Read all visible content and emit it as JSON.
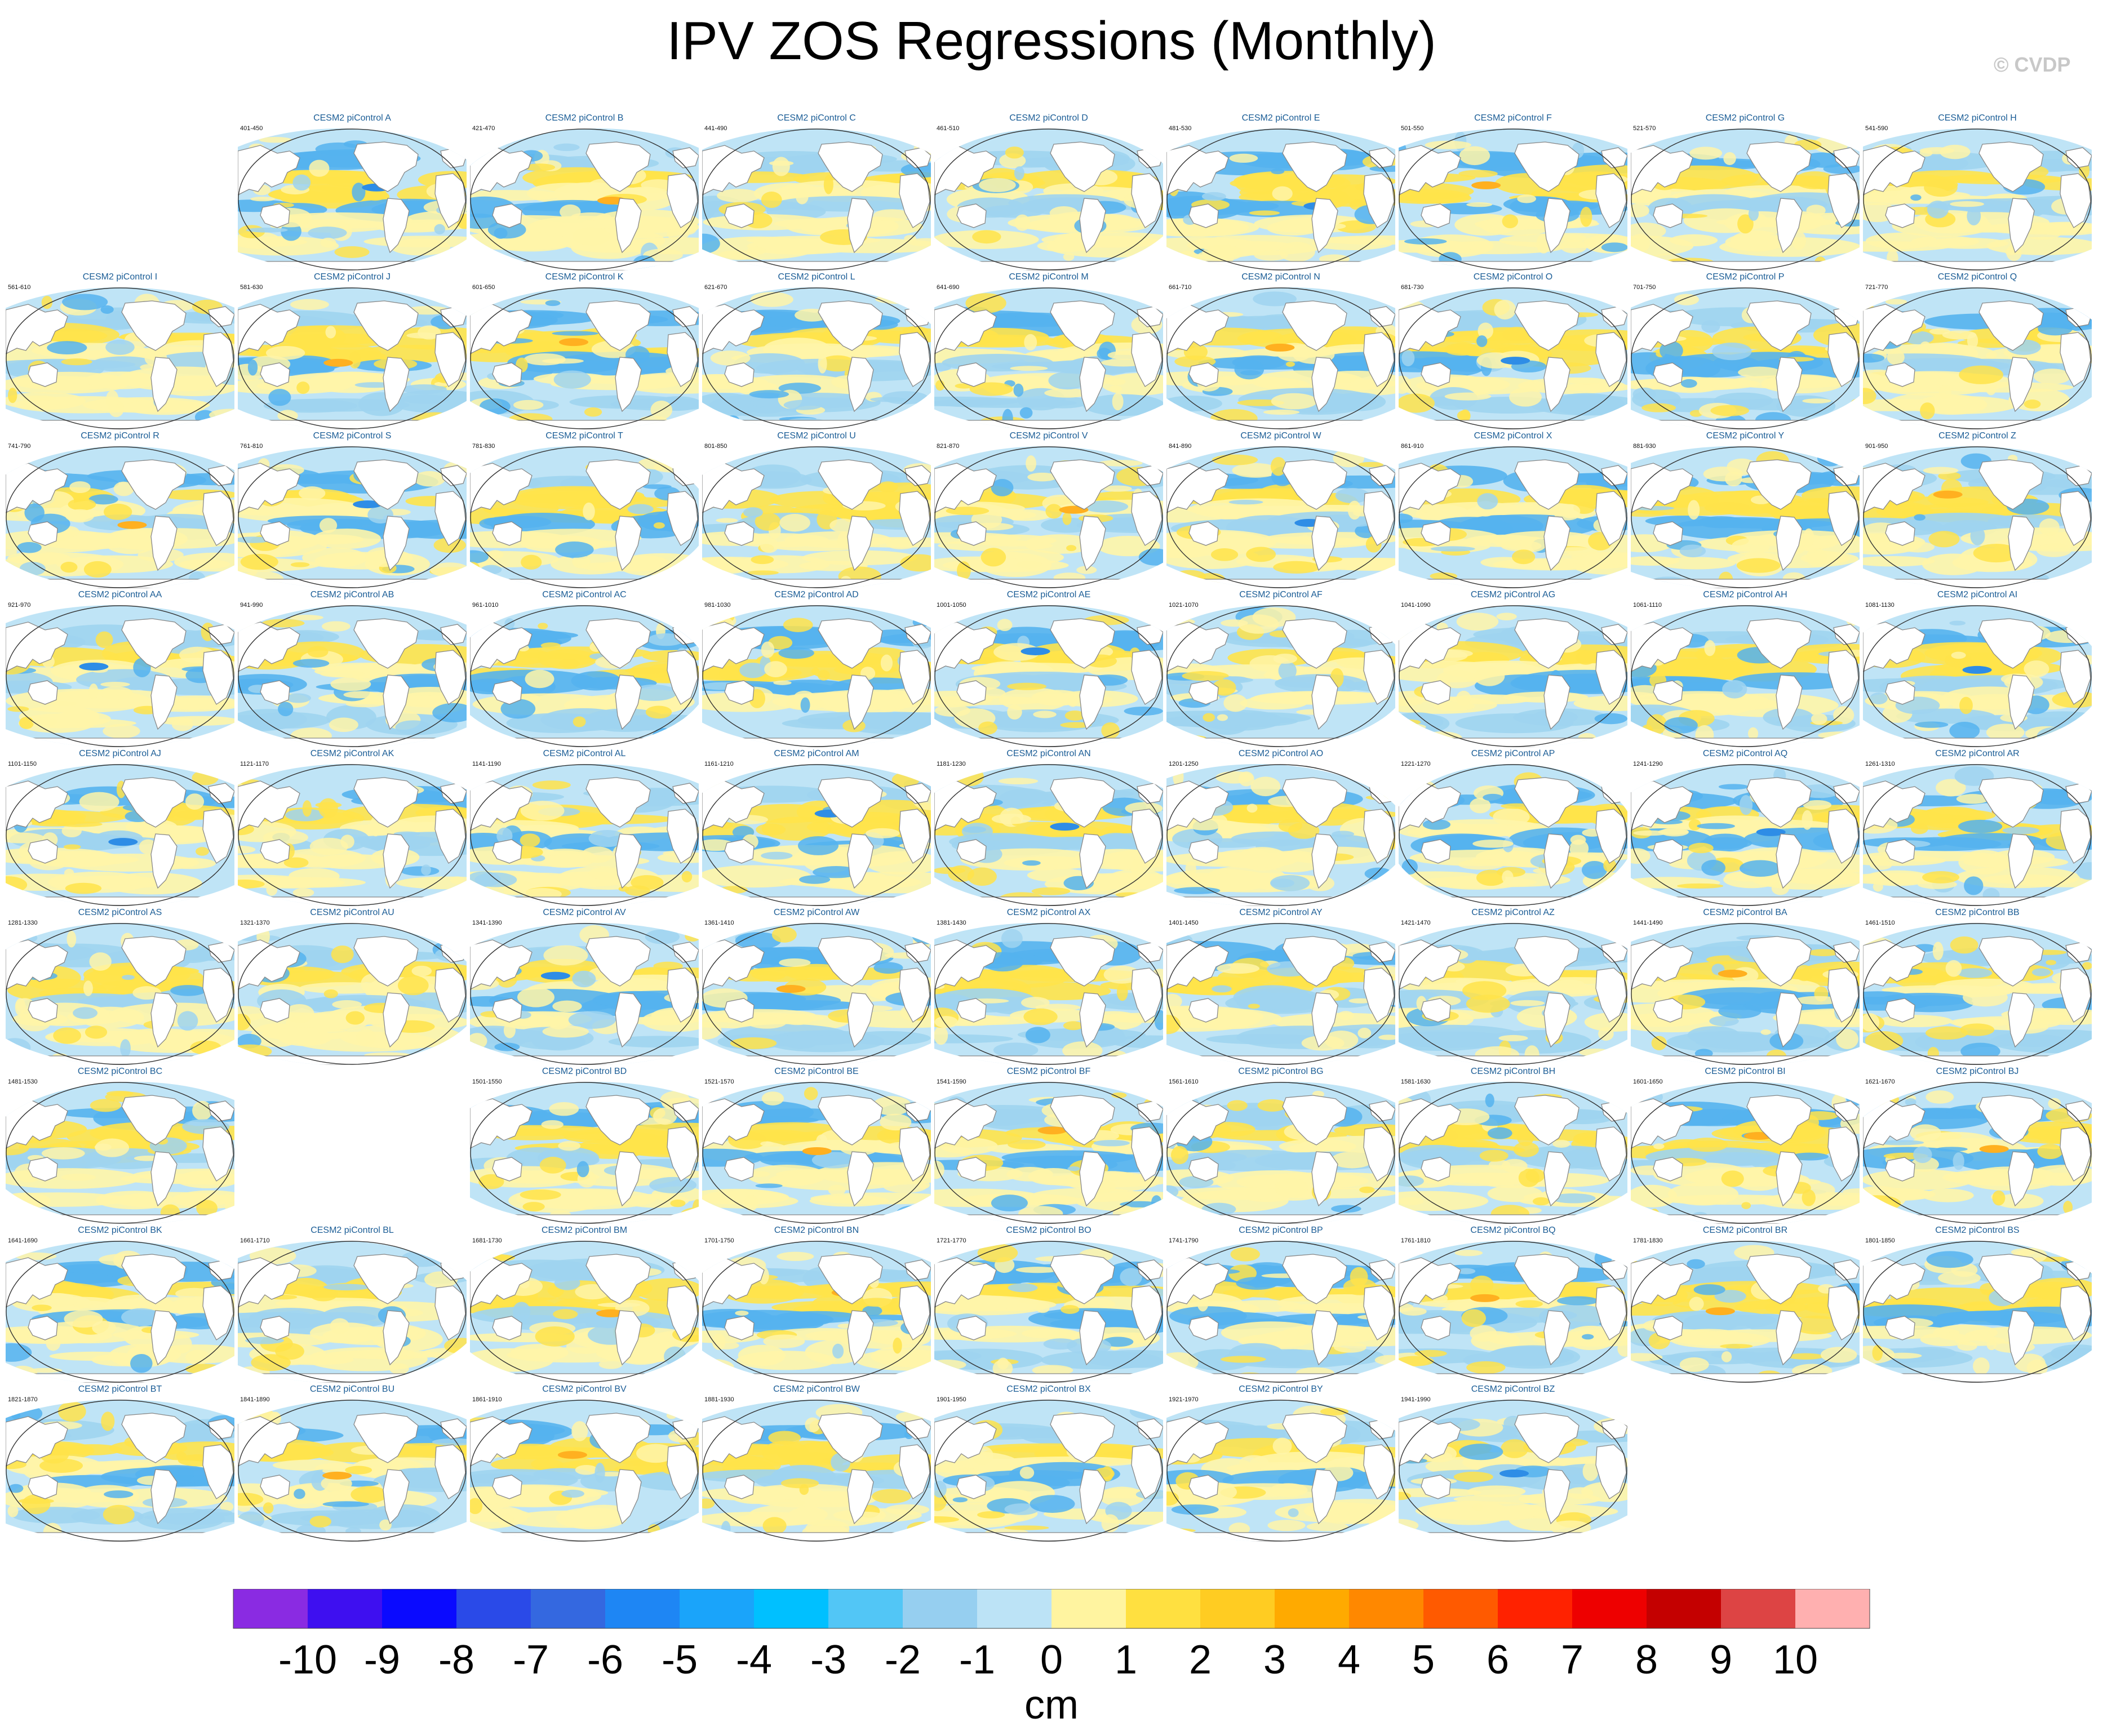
{
  "title": "IPV ZOS Regressions (Monthly)",
  "credit": "© CVDP",
  "colorbar": {
    "unit": "cm",
    "tick_labels": [
      "-10",
      "-9",
      "-8",
      "-7",
      "-6",
      "-5",
      "-4",
      "-3",
      "-2",
      "-1",
      "0",
      "1",
      "2",
      "3",
      "4",
      "5",
      "6",
      "7",
      "8",
      "9",
      "10"
    ],
    "colors": [
      "#8a2be2",
      "#3e0ff0",
      "#0a0aff",
      "#2a4ae8",
      "#3468e0",
      "#1e86f4",
      "#1aa4fa",
      "#00c0ff",
      "#52c6f6",
      "#96cff0",
      "#bce3f6",
      "#fff4a0",
      "#ffe040",
      "#ffcc22",
      "#ffaa00",
      "#ff8800",
      "#ff5a00",
      "#ff2200",
      "#ee0000",
      "#c40000",
      "#dd4444",
      "#ffb0b0"
    ]
  },
  "map_colors": {
    "ocean_neutral": "#bfe4f6",
    "light_blue": "#9fd4f0",
    "mid_blue": "#55b3ee",
    "strong_blue": "#2e8de6",
    "light_yellow": "#fff5a8",
    "yellow": "#ffe34a",
    "orange": "#ffb020",
    "land": "#ffffff",
    "coast": "#888888"
  },
  "panels": [
    {
      "title": "CESM2 piControl A",
      "years": "401-450"
    },
    {
      "title": "CESM2 piControl B",
      "years": "421-470"
    },
    {
      "title": "CESM2 piControl C",
      "years": "441-490"
    },
    {
      "title": "CESM2 piControl D",
      "years": "461-510"
    },
    {
      "title": "CESM2 piControl E",
      "years": "481-530"
    },
    {
      "title": "CESM2 piControl F",
      "years": "501-550"
    },
    {
      "title": "CESM2 piControl G",
      "years": "521-570"
    },
    {
      "title": "CESM2 piControl H",
      "years": "541-590"
    },
    {
      "title": "CESM2 piControl I",
      "years": "561-610"
    },
    {
      "title": "CESM2 piControl J",
      "years": "581-630"
    },
    {
      "title": "CESM2 piControl K",
      "years": "601-650"
    },
    {
      "title": "CESM2 piControl L",
      "years": "621-670"
    },
    {
      "title": "CESM2 piControl M",
      "years": "641-690"
    },
    {
      "title": "CESM2 piControl N",
      "years": "661-710"
    },
    {
      "title": "CESM2 piControl O",
      "years": "681-730"
    },
    {
      "title": "CESM2 piControl P",
      "years": "701-750"
    },
    {
      "title": "CESM2 piControl Q",
      "years": "721-770"
    },
    {
      "title": "CESM2 piControl R",
      "years": "741-790"
    },
    {
      "title": "CESM2 piControl S",
      "years": "761-810"
    },
    {
      "title": "CESM2 piControl T",
      "years": "781-830"
    },
    {
      "title": "CESM2 piControl U",
      "years": "801-850"
    },
    {
      "title": "CESM2 piControl V",
      "years": "821-870"
    },
    {
      "title": "CESM2 piControl W",
      "years": "841-890"
    },
    {
      "title": "CESM2 piControl X",
      "years": "861-910"
    },
    {
      "title": "CESM2 piControl Y",
      "years": "881-930"
    },
    {
      "title": "CESM2 piControl Z",
      "years": "901-950"
    },
    {
      "title": "CESM2 piControl AA",
      "years": "921-970"
    },
    {
      "title": "CESM2 piControl AB",
      "years": "941-990"
    },
    {
      "title": "CESM2 piControl AC",
      "years": "961-1010"
    },
    {
      "title": "CESM2 piControl AD",
      "years": "981-1030"
    },
    {
      "title": "CESM2 piControl AE",
      "years": "1001-1050"
    },
    {
      "title": "CESM2 piControl AF",
      "years": "1021-1070"
    },
    {
      "title": "CESM2 piControl AG",
      "years": "1041-1090"
    },
    {
      "title": "CESM2 piControl AH",
      "years": "1061-1110"
    },
    {
      "title": "CESM2 piControl AI",
      "years": "1081-1130"
    },
    {
      "title": "CESM2 piControl AJ",
      "years": "1101-1150"
    },
    {
      "title": "CESM2 piControl AK",
      "years": "1121-1170"
    },
    {
      "title": "CESM2 piControl AL",
      "years": "1141-1190"
    },
    {
      "title": "CESM2 piControl AM",
      "years": "1161-1210"
    },
    {
      "title": "CESM2 piControl AN",
      "years": "1181-1230"
    },
    {
      "title": "CESM2 piControl AO",
      "years": "1201-1250"
    },
    {
      "title": "CESM2 piControl AP",
      "years": "1221-1270"
    },
    {
      "title": "CESM2 piControl AQ",
      "years": "1241-1290"
    },
    {
      "title": "CESM2 piControl AR",
      "years": "1261-1310"
    },
    {
      "title": "CESM2 piControl AS",
      "years": "1281-1330"
    },
    {
      "title": "CESM2 piControl AU",
      "years": "1321-1370"
    },
    {
      "title": "CESM2 piControl AV",
      "years": "1341-1390"
    },
    {
      "title": "CESM2 piControl AW",
      "years": "1361-1410"
    },
    {
      "title": "CESM2 piControl AX",
      "years": "1381-1430"
    },
    {
      "title": "CESM2 piControl AY",
      "years": "1401-1450"
    },
    {
      "title": "CESM2 piControl AZ",
      "years": "1421-1470"
    },
    {
      "title": "CESM2 piControl BA",
      "years": "1441-1490"
    },
    {
      "title": "CESM2 piControl BB",
      "years": "1461-1510"
    },
    {
      "title": "CESM2 piControl BC",
      "years": "1481-1530"
    },
    {
      "title": "CESM2 piControl BD",
      "years": "1501-1550"
    },
    {
      "title": "CESM2 piControl BE",
      "years": "1521-1570"
    },
    {
      "title": "CESM2 piControl BF",
      "years": "1541-1590"
    },
    {
      "title": "CESM2 piControl BG",
      "years": "1561-1610"
    },
    {
      "title": "CESM2 piControl BH",
      "years": "1581-1630"
    },
    {
      "title": "CESM2 piControl BI",
      "years": "1601-1650"
    },
    {
      "title": "CESM2 piControl BJ",
      "years": "1621-1670"
    },
    {
      "title": "CESM2 piControl BK",
      "years": "1641-1690"
    },
    {
      "title": "CESM2 piControl BL",
      "years": "1661-1710"
    },
    {
      "title": "CESM2 piControl BM",
      "years": "1681-1730"
    },
    {
      "title": "CESM2 piControl BN",
      "years": "1701-1750"
    },
    {
      "title": "CESM2 piControl BO",
      "years": "1721-1770"
    },
    {
      "title": "CESM2 piControl BP",
      "years": "1741-1790"
    },
    {
      "title": "CESM2 piControl BQ",
      "years": "1761-1810"
    },
    {
      "title": "CESM2 piControl BR",
      "years": "1781-1830"
    },
    {
      "title": "CESM2 piControl BS",
      "years": "1801-1850"
    },
    {
      "title": "CESM2 piControl BT",
      "years": "1821-1870"
    },
    {
      "title": "CESM2 piControl BU",
      "years": "1841-1890"
    },
    {
      "title": "CESM2 piControl BV",
      "years": "1861-1910"
    },
    {
      "title": "CESM2 piControl BW",
      "years": "1881-1930"
    },
    {
      "title": "CESM2 piControl BX",
      "years": "1901-1950"
    },
    {
      "title": "CESM2 piControl BY",
      "years": "1921-1970"
    },
    {
      "title": "CESM2 piControl BZ",
      "years": "1941-1990"
    }
  ]
}
